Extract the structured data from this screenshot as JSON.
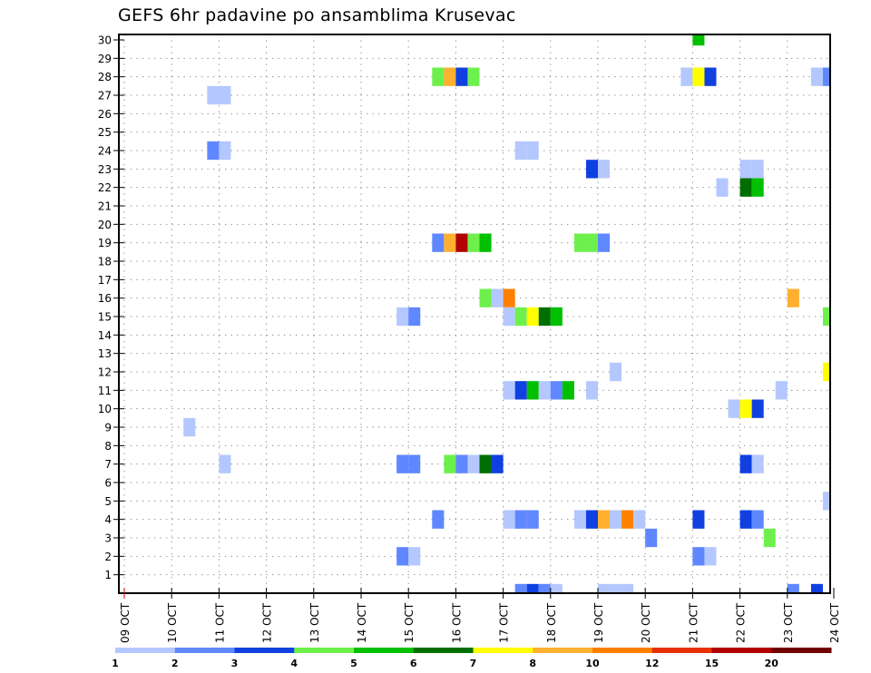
{
  "chart_data": {
    "type": "heatmap",
    "title": "GEFS 6hr padavine po ansamblima Krusevac",
    "xlabel": "",
    "ylabel": "",
    "x_tick_labels": [
      "09 OCT",
      "10 OCT",
      "11 OCT",
      "12 OCT",
      "13 OCT",
      "14 OCT",
      "15 OCT",
      "16 OCT",
      "17 OCT",
      "18 OCT",
      "19 OCT",
      "20 OCT",
      "21 OCT",
      "22 OCT",
      "23 OCT",
      "24 OCT"
    ],
    "y_tick_labels": [
      "1",
      "2",
      "3",
      "4",
      "5",
      "6",
      "7",
      "8",
      "9",
      "10",
      "11",
      "12",
      "13",
      "14",
      "15",
      "16",
      "17",
      "18",
      "19",
      "20",
      "21",
      "22",
      "23",
      "24",
      "25",
      "26",
      "27",
      "28",
      "29",
      "30"
    ],
    "x_steps_per_day": 4,
    "x_range_steps": [
      0,
      60
    ],
    "y_range_members": [
      0,
      30
    ],
    "grid": true,
    "colorbar": {
      "position": "bottom",
      "labels": [
        "1",
        "2",
        "3",
        "4",
        "5",
        "6",
        "7",
        "8",
        "10",
        "12",
        "15",
        "20"
      ],
      "colors": [
        "#b4c8ff",
        "#5f87ff",
        "#1040e0",
        "#6ef04c",
        "#00c000",
        "#006e00",
        "#ffff00",
        "#ffb030",
        "#ff8000",
        "#e83000",
        "#b00000",
        "#700000"
      ]
    },
    "cells_note": "each cell: [member, 6h step index from 09 OCT 00Z, colour class index into colorbar.colors]",
    "cells": [
      [
        30,
        48,
        4
      ],
      [
        28,
        26,
        3
      ],
      [
        28,
        27,
        7
      ],
      [
        28,
        28,
        2
      ],
      [
        28,
        29,
        3
      ],
      [
        28,
        47,
        0
      ],
      [
        28,
        48,
        6
      ],
      [
        28,
        49,
        2
      ],
      [
        28,
        58,
        0
      ],
      [
        28,
        59,
        1
      ],
      [
        27,
        7,
        0
      ],
      [
        27,
        8,
        0
      ],
      [
        24,
        7,
        1
      ],
      [
        24,
        8,
        0
      ],
      [
        24,
        33,
        0
      ],
      [
        24,
        34,
        0
      ],
      [
        23,
        39,
        2
      ],
      [
        23,
        40,
        0
      ],
      [
        23,
        52,
        0
      ],
      [
        23,
        53,
        0
      ],
      [
        22,
        50,
        0
      ],
      [
        22,
        52,
        5
      ],
      [
        22,
        53,
        4
      ],
      [
        19,
        26,
        1
      ],
      [
        19,
        27,
        7
      ],
      [
        19,
        28,
        10
      ],
      [
        19,
        29,
        3
      ],
      [
        19,
        30,
        4
      ],
      [
        19,
        38,
        3
      ],
      [
        19,
        39,
        3
      ],
      [
        19,
        40,
        1
      ],
      [
        16,
        30,
        3
      ],
      [
        16,
        31,
        0
      ],
      [
        16,
        32,
        8
      ],
      [
        16,
        56,
        7
      ],
      [
        15,
        23,
        0
      ],
      [
        15,
        24,
        1
      ],
      [
        15,
        32,
        0
      ],
      [
        15,
        33,
        3
      ],
      [
        15,
        34,
        6
      ],
      [
        15,
        35,
        5
      ],
      [
        15,
        36,
        4
      ],
      [
        15,
        59,
        3
      ],
      [
        12,
        41,
        0
      ],
      [
        12,
        59,
        6
      ],
      [
        11,
        32,
        0
      ],
      [
        11,
        33,
        2
      ],
      [
        11,
        34,
        4
      ],
      [
        11,
        35,
        0
      ],
      [
        11,
        36,
        1
      ],
      [
        11,
        37,
        4
      ],
      [
        11,
        39,
        0
      ],
      [
        11,
        55,
        0
      ],
      [
        10,
        51,
        0
      ],
      [
        10,
        52,
        6
      ],
      [
        10,
        53,
        2
      ],
      [
        9,
        5,
        0
      ],
      [
        7,
        8,
        0
      ],
      [
        7,
        23,
        1
      ],
      [
        7,
        24,
        1
      ],
      [
        7,
        27,
        3
      ],
      [
        7,
        28,
        1
      ],
      [
        7,
        29,
        0
      ],
      [
        7,
        30,
        5
      ],
      [
        7,
        31,
        2
      ],
      [
        7,
        52,
        2
      ],
      [
        7,
        53,
        0
      ],
      [
        5,
        59,
        0
      ],
      [
        4,
        26,
        1
      ],
      [
        4,
        32,
        0
      ],
      [
        4,
        33,
        1
      ],
      [
        4,
        34,
        1
      ],
      [
        4,
        38,
        0
      ],
      [
        4,
        39,
        2
      ],
      [
        4,
        40,
        7
      ],
      [
        4,
        41,
        0
      ],
      [
        4,
        42,
        8
      ],
      [
        4,
        43,
        0
      ],
      [
        4,
        48,
        2
      ],
      [
        4,
        52,
        2
      ],
      [
        4,
        53,
        1
      ],
      [
        3,
        44,
        1
      ],
      [
        3,
        54,
        3
      ],
      [
        2,
        23,
        1
      ],
      [
        2,
        24,
        0
      ],
      [
        2,
        48,
        1
      ],
      [
        2,
        49,
        0
      ],
      [
        0,
        33,
        1
      ],
      [
        0,
        34,
        2
      ],
      [
        0,
        35,
        1
      ],
      [
        0,
        36,
        0
      ],
      [
        0,
        40,
        0
      ],
      [
        0,
        41,
        0
      ],
      [
        0,
        42,
        0
      ],
      [
        0,
        56,
        1
      ],
      [
        0,
        58,
        2
      ]
    ]
  }
}
